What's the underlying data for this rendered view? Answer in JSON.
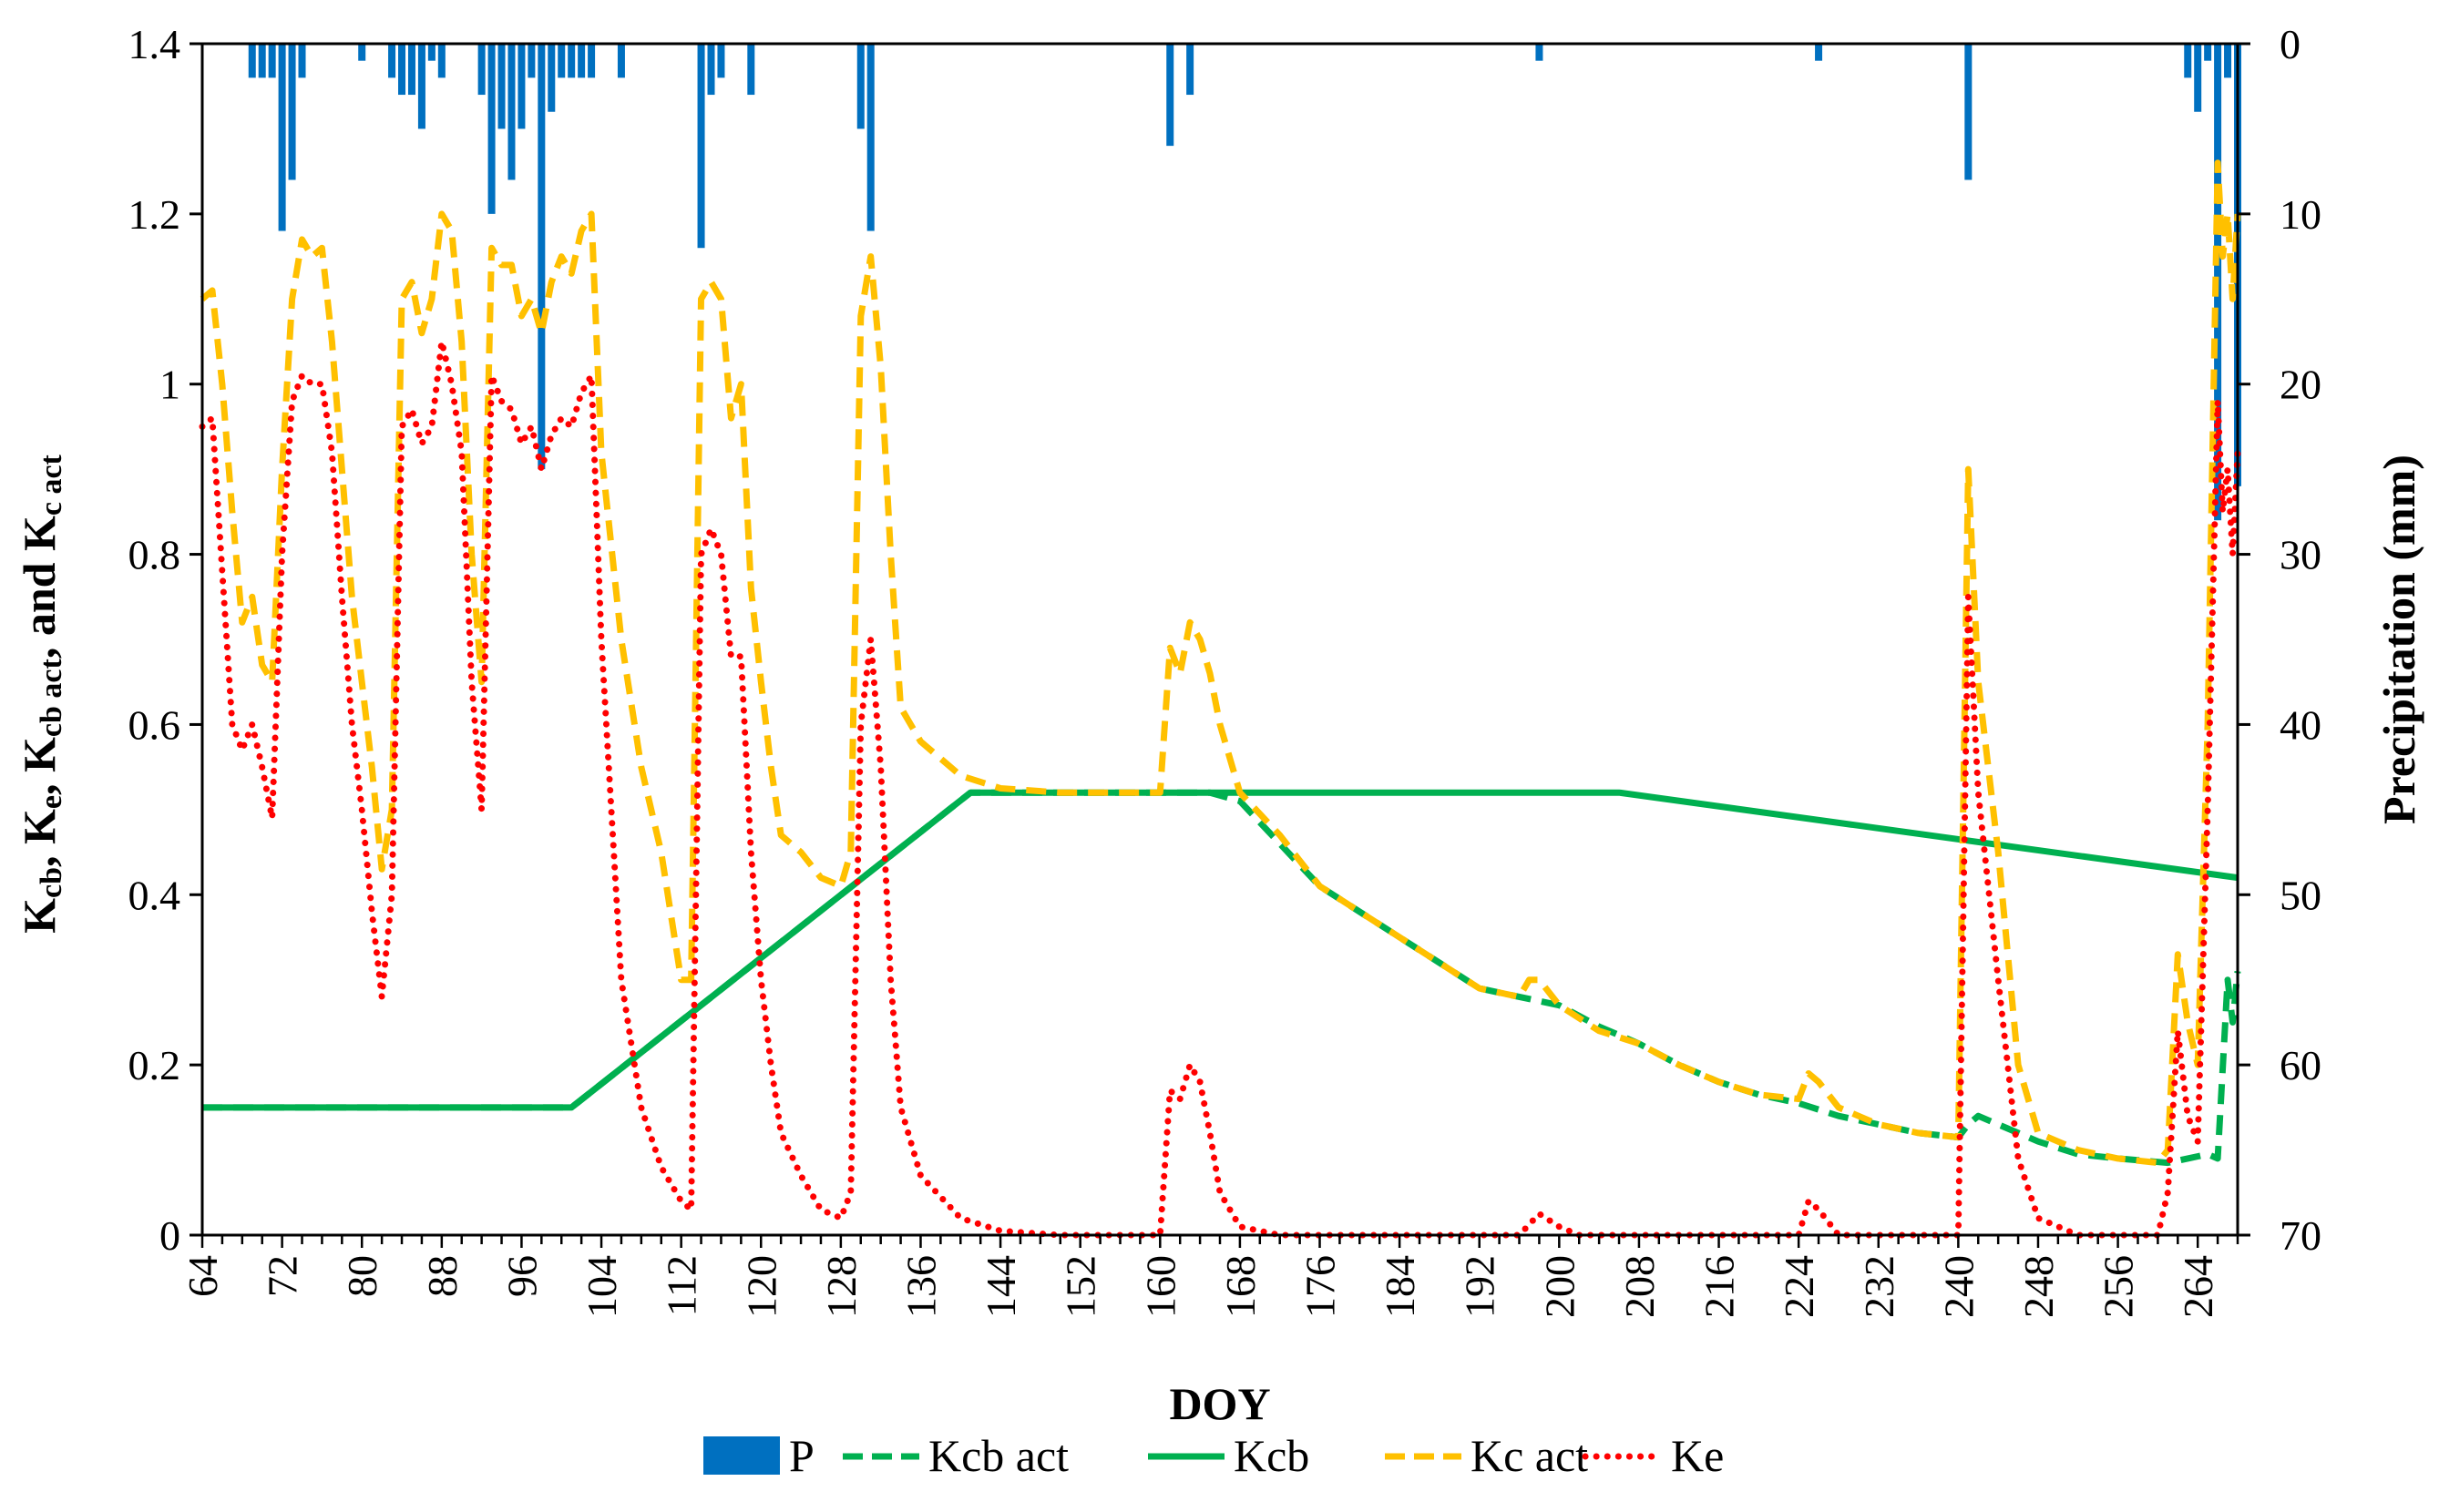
{
  "chart_data": {
    "type": "line",
    "xlabel": "DOY",
    "ylabel_left": "Kcb, Ke, Kcb act, and Kc act",
    "ylabel_left_parts": [
      {
        "t": "K",
        "sub": false
      },
      {
        "t": "cb",
        "sub": true
      },
      {
        "t": ", K",
        "sub": false
      },
      {
        "t": "e",
        "sub": true
      },
      {
        "t": ", K",
        "sub": false
      },
      {
        "t": "cb act",
        "sub": true
      },
      {
        "t": ", and K",
        "sub": false
      },
      {
        "t": "c act",
        "sub": true
      }
    ],
    "ylabel_right": "Precipitation (mm)",
    "xlim": [
      64,
      268
    ],
    "ylim_left": [
      0,
      1.4
    ],
    "ylim_right": [
      0,
      70
    ],
    "right_axis_inverted": true,
    "x_ticks": [
      64,
      72,
      80,
      88,
      96,
      104,
      112,
      120,
      128,
      136,
      144,
      152,
      160,
      168,
      176,
      184,
      192,
      200,
      208,
      216,
      224,
      232,
      240,
      248,
      256,
      264
    ],
    "y_left_ticks": [
      {
        "v": 0,
        "label": "0"
      },
      {
        "v": 0.2,
        "label": "0.2"
      },
      {
        "v": 0.4,
        "label": "0.4"
      },
      {
        "v": 0.6,
        "label": "0.6"
      },
      {
        "v": 0.8,
        "label": "0.8"
      },
      {
        "v": 1.0,
        "label": "1"
      },
      {
        "v": 1.2,
        "label": "1.2"
      },
      {
        "v": 1.4,
        "label": "1.4"
      }
    ],
    "y_right_ticks": [
      0,
      10,
      20,
      30,
      40,
      50,
      60,
      70
    ],
    "grid": false,
    "legend_position": "bottom",
    "legend": [
      {
        "key": "P",
        "label": "P",
        "kind": "bar"
      },
      {
        "key": "kcb_act",
        "label": "Kcb act",
        "kind": "dashed"
      },
      {
        "key": "kcb",
        "label": "Kcb",
        "kind": "solid"
      },
      {
        "key": "kc_act",
        "label": "Kc act",
        "kind": "dashed"
      },
      {
        "key": "ke",
        "label": "Ke",
        "kind": "dotted"
      }
    ],
    "colors": {
      "P": "#0070C0",
      "kcb_act": "#00B050",
      "kcb": "#00B050",
      "kc_act": "#FFC000",
      "ke": "#FF0000"
    },
    "series": {
      "P": [
        [
          69,
          2
        ],
        [
          70,
          2
        ],
        [
          71,
          2
        ],
        [
          72,
          11
        ],
        [
          73,
          8
        ],
        [
          74,
          2
        ],
        [
          80,
          1
        ],
        [
          83,
          2
        ],
        [
          84,
          3
        ],
        [
          85,
          3
        ],
        [
          86,
          5
        ],
        [
          87,
          1
        ],
        [
          88,
          2
        ],
        [
          92,
          3
        ],
        [
          93,
          10
        ],
        [
          94,
          5
        ],
        [
          95,
          8
        ],
        [
          96,
          5
        ],
        [
          97,
          2
        ],
        [
          98,
          25
        ],
        [
          99,
          4
        ],
        [
          100,
          2
        ],
        [
          101,
          2
        ],
        [
          102,
          2
        ],
        [
          103,
          2
        ],
        [
          106,
          2
        ],
        [
          114,
          12
        ],
        [
          115,
          3
        ],
        [
          116,
          2
        ],
        [
          119,
          3
        ],
        [
          130,
          5
        ],
        [
          131,
          11
        ],
        [
          161,
          6
        ],
        [
          163,
          3
        ],
        [
          198,
          1
        ],
        [
          226,
          1
        ],
        [
          241,
          8
        ],
        [
          263,
          2
        ],
        [
          264,
          4
        ],
        [
          265,
          1
        ],
        [
          266,
          28
        ],
        [
          267,
          2
        ],
        [
          268,
          26
        ]
      ],
      "kcb": [
        [
          64,
          0.15
        ],
        [
          101,
          0.15
        ],
        [
          141,
          0.52
        ],
        [
          206,
          0.52
        ],
        [
          268,
          0.42
        ]
      ],
      "kcb_act": [
        [
          64,
          0.15
        ],
        [
          101,
          0.15
        ],
        [
          141,
          0.52
        ],
        [
          165,
          0.52
        ],
        [
          168,
          0.51
        ],
        [
          172,
          0.46
        ],
        [
          176,
          0.41
        ],
        [
          180,
          0.38
        ],
        [
          184,
          0.35
        ],
        [
          188,
          0.32
        ],
        [
          192,
          0.29
        ],
        [
          196,
          0.28
        ],
        [
          200,
          0.27
        ],
        [
          204,
          0.245
        ],
        [
          208,
          0.225
        ],
        [
          212,
          0.2
        ],
        [
          216,
          0.18
        ],
        [
          220,
          0.165
        ],
        [
          224,
          0.155
        ],
        [
          228,
          0.14
        ],
        [
          232,
          0.13
        ],
        [
          236,
          0.12
        ],
        [
          240,
          0.115
        ],
        [
          241,
          0.13
        ],
        [
          242,
          0.14
        ],
        [
          244,
          0.13
        ],
        [
          248,
          0.11
        ],
        [
          252,
          0.095
        ],
        [
          256,
          0.09
        ],
        [
          261,
          0.085
        ],
        [
          263,
          0.09
        ],
        [
          265,
          0.095
        ],
        [
          266,
          0.09
        ],
        [
          267,
          0.3
        ],
        [
          267.5,
          0.25
        ],
        [
          268,
          0.31
        ]
      ],
      "kc_act": [
        [
          64,
          1.1
        ],
        [
          65,
          1.11
        ],
        [
          66,
          1.0
        ],
        [
          67,
          0.85
        ],
        [
          68,
          0.72
        ],
        [
          69,
          0.75
        ],
        [
          70,
          0.67
        ],
        [
          71,
          0.65
        ],
        [
          72,
          0.9
        ],
        [
          73,
          1.1
        ],
        [
          74,
          1.17
        ],
        [
          75,
          1.15
        ],
        [
          76,
          1.16
        ],
        [
          77,
          1.05
        ],
        [
          78,
          0.9
        ],
        [
          79,
          0.75
        ],
        [
          80,
          0.65
        ],
        [
          81,
          0.55
        ],
        [
          82,
          0.43
        ],
        [
          83,
          0.5
        ],
        [
          84,
          1.1
        ],
        [
          85,
          1.12
        ],
        [
          86,
          1.06
        ],
        [
          87,
          1.1
        ],
        [
          88,
          1.2
        ],
        [
          89,
          1.18
        ],
        [
          90,
          1.05
        ],
        [
          91,
          0.8
        ],
        [
          92,
          0.65
        ],
        [
          93,
          1.16
        ],
        [
          94,
          1.14
        ],
        [
          95,
          1.14
        ],
        [
          96,
          1.08
        ],
        [
          97,
          1.1
        ],
        [
          98,
          1.06
        ],
        [
          99,
          1.12
        ],
        [
          100,
          1.15
        ],
        [
          101,
          1.13
        ],
        [
          102,
          1.18
        ],
        [
          103,
          1.2
        ],
        [
          104,
          0.92
        ],
        [
          106,
          0.7
        ],
        [
          108,
          0.55
        ],
        [
          110,
          0.45
        ],
        [
          112,
          0.3
        ],
        [
          113,
          0.3
        ],
        [
          114,
          1.1
        ],
        [
          115,
          1.12
        ],
        [
          116,
          1.1
        ],
        [
          117,
          0.96
        ],
        [
          118,
          1.0
        ],
        [
          119,
          0.76
        ],
        [
          120,
          0.65
        ],
        [
          121,
          0.55
        ],
        [
          122,
          0.47
        ],
        [
          124,
          0.45
        ],
        [
          126,
          0.42
        ],
        [
          128,
          0.41
        ],
        [
          129,
          0.45
        ],
        [
          130,
          1.08
        ],
        [
          131,
          1.15
        ],
        [
          132,
          1.02
        ],
        [
          133,
          0.8
        ],
        [
          134,
          0.62
        ],
        [
          136,
          0.58
        ],
        [
          140,
          0.54
        ],
        [
          144,
          0.525
        ],
        [
          150,
          0.52
        ],
        [
          158,
          0.52
        ],
        [
          160,
          0.52
        ],
        [
          161,
          0.69
        ],
        [
          162,
          0.66
        ],
        [
          163,
          0.72
        ],
        [
          164,
          0.7
        ],
        [
          165,
          0.66
        ],
        [
          166,
          0.6
        ],
        [
          168,
          0.52
        ],
        [
          172,
          0.47
        ],
        [
          176,
          0.41
        ],
        [
          180,
          0.38
        ],
        [
          184,
          0.35
        ],
        [
          188,
          0.32
        ],
        [
          192,
          0.29
        ],
        [
          196,
          0.28
        ],
        [
          197,
          0.3
        ],
        [
          198,
          0.3
        ],
        [
          200,
          0.27
        ],
        [
          204,
          0.24
        ],
        [
          208,
          0.225
        ],
        [
          212,
          0.2
        ],
        [
          216,
          0.18
        ],
        [
          220,
          0.165
        ],
        [
          224,
          0.16
        ],
        [
          225,
          0.19
        ],
        [
          226,
          0.18
        ],
        [
          228,
          0.15
        ],
        [
          232,
          0.13
        ],
        [
          236,
          0.12
        ],
        [
          240,
          0.115
        ],
        [
          241,
          0.9
        ],
        [
          242,
          0.65
        ],
        [
          244,
          0.45
        ],
        [
          246,
          0.2
        ],
        [
          248,
          0.12
        ],
        [
          252,
          0.1
        ],
        [
          256,
          0.09
        ],
        [
          260,
          0.085
        ],
        [
          261,
          0.1
        ],
        [
          262,
          0.33
        ],
        [
          263,
          0.25
        ],
        [
          264,
          0.2
        ],
        [
          265,
          0.6
        ],
        [
          266,
          1.26
        ],
        [
          266.5,
          1.15
        ],
        [
          267,
          1.2
        ],
        [
          267.5,
          1.1
        ],
        [
          268,
          1.2
        ]
      ],
      "ke": [
        [
          64,
          0.95
        ],
        [
          65,
          0.96
        ],
        [
          66,
          0.78
        ],
        [
          67,
          0.6
        ],
        [
          68,
          0.57
        ],
        [
          69,
          0.6
        ],
        [
          70,
          0.55
        ],
        [
          71,
          0.49
        ],
        [
          72,
          0.8
        ],
        [
          73,
          0.98
        ],
        [
          74,
          1.01
        ],
        [
          75,
          1.0
        ],
        [
          76,
          1.0
        ],
        [
          77,
          0.92
        ],
        [
          78,
          0.75
        ],
        [
          79,
          0.6
        ],
        [
          80,
          0.5
        ],
        [
          81,
          0.38
        ],
        [
          82,
          0.28
        ],
        [
          83,
          0.4
        ],
        [
          84,
          0.95
        ],
        [
          85,
          0.97
        ],
        [
          86,
          0.93
        ],
        [
          87,
          0.95
        ],
        [
          88,
          1.05
        ],
        [
          89,
          1.0
        ],
        [
          90,
          0.92
        ],
        [
          91,
          0.65
        ],
        [
          92,
          0.5
        ],
        [
          93,
          1.01
        ],
        [
          94,
          0.98
        ],
        [
          95,
          0.97
        ],
        [
          96,
          0.93
        ],
        [
          97,
          0.95
        ],
        [
          98,
          0.9
        ],
        [
          99,
          0.94
        ],
        [
          100,
          0.96
        ],
        [
          101,
          0.95
        ],
        [
          102,
          0.99
        ],
        [
          103,
          1.01
        ],
        [
          104,
          0.7
        ],
        [
          106,
          0.3
        ],
        [
          108,
          0.15
        ],
        [
          110,
          0.08
        ],
        [
          112,
          0.04
        ],
        [
          113,
          0.03
        ],
        [
          114,
          0.8
        ],
        [
          115,
          0.83
        ],
        [
          116,
          0.8
        ],
        [
          117,
          0.68
        ],
        [
          118,
          0.68
        ],
        [
          119,
          0.45
        ],
        [
          120,
          0.3
        ],
        [
          121,
          0.2
        ],
        [
          122,
          0.12
        ],
        [
          124,
          0.07
        ],
        [
          126,
          0.03
        ],
        [
          128,
          0.02
        ],
        [
          129,
          0.05
        ],
        [
          130,
          0.6
        ],
        [
          131,
          0.7
        ],
        [
          132,
          0.55
        ],
        [
          133,
          0.3
        ],
        [
          134,
          0.15
        ],
        [
          136,
          0.07
        ],
        [
          140,
          0.02
        ],
        [
          144,
          0.005
        ],
        [
          150,
          0
        ],
        [
          160,
          0
        ],
        [
          161,
          0.17
        ],
        [
          162,
          0.16
        ],
        [
          163,
          0.2
        ],
        [
          164,
          0.18
        ],
        [
          165,
          0.12
        ],
        [
          166,
          0.05
        ],
        [
          168,
          0.01
        ],
        [
          172,
          0
        ],
        [
          196,
          0
        ],
        [
          198,
          0.025
        ],
        [
          200,
          0.01
        ],
        [
          202,
          0
        ],
        [
          224,
          0
        ],
        [
          225,
          0.04
        ],
        [
          226,
          0.03
        ],
        [
          228,
          0
        ],
        [
          240,
          0
        ],
        [
          241,
          0.75
        ],
        [
          242,
          0.52
        ],
        [
          244,
          0.3
        ],
        [
          246,
          0.09
        ],
        [
          248,
          0.02
        ],
        [
          252,
          0
        ],
        [
          260,
          0
        ],
        [
          261,
          0.05
        ],
        [
          262,
          0.24
        ],
        [
          263,
          0.14
        ],
        [
          264,
          0.11
        ],
        [
          265,
          0.5
        ],
        [
          266,
          0.98
        ],
        [
          266.5,
          0.85
        ],
        [
          267,
          0.9
        ],
        [
          267.5,
          0.8
        ],
        [
          268,
          0.92
        ]
      ]
    }
  }
}
